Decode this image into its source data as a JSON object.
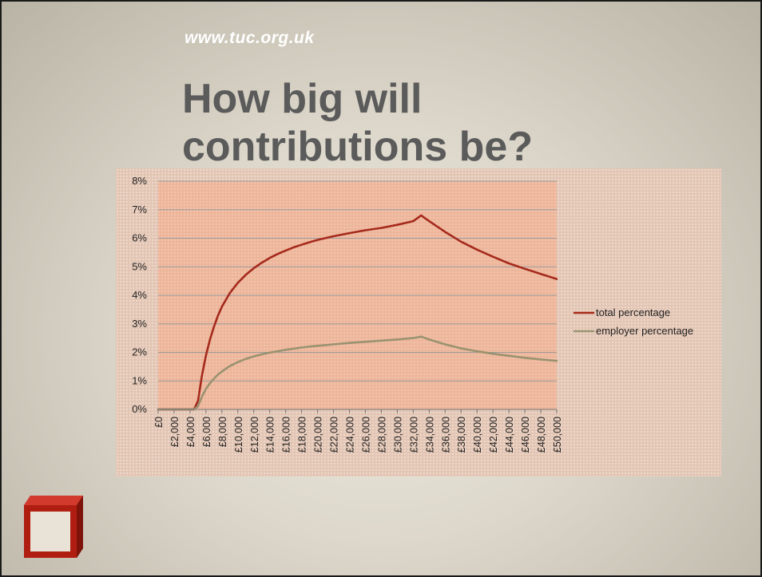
{
  "slide": {
    "url": "www.tuc.org.uk",
    "title_lines": [
      "How big will",
      "contributions be?"
    ]
  },
  "chart_data": {
    "type": "line",
    "x_tick_labels": [
      "£0",
      "£2,000",
      "£4,000",
      "£6,000",
      "£8,000",
      "£10,000",
      "£12,000",
      "£14,000",
      "£16,000",
      "£18,000",
      "£20,000",
      "£22,000",
      "£24,000",
      "£26,000",
      "£28,000",
      "£30,000",
      "£32,000",
      "£34,000",
      "£36,000",
      "£38,000",
      "£40,000",
      "£42,000",
      "£44,000",
      "£46,000",
      "£48,000",
      "£50,000"
    ],
    "y_tick_labels": [
      "0%",
      "1%",
      "2%",
      "3%",
      "4%",
      "5%",
      "6%",
      "7%",
      "8%"
    ],
    "ylim": [
      0,
      8
    ],
    "xlim": [
      0,
      50000
    ],
    "grid": true,
    "legend_position": "right",
    "series": [
      {
        "name": "total percentage",
        "color": "#a52a1c",
        "x": [
          0,
          4500,
          5000,
          5500,
          6000,
          6500,
          7000,
          7500,
          8000,
          9000,
          10000,
          11000,
          12000,
          13000,
          14000,
          15000,
          16000,
          17000,
          18000,
          19000,
          20000,
          22000,
          24000,
          26000,
          28000,
          30000,
          32000,
          33000,
          34000,
          36000,
          38000,
          40000,
          42000,
          44000,
          46000,
          48000,
          50000
        ],
        "values": [
          0,
          0,
          0.3,
          1.2,
          1.9,
          2.45,
          2.9,
          3.28,
          3.6,
          4.08,
          4.44,
          4.72,
          4.95,
          5.14,
          5.31,
          5.45,
          5.57,
          5.68,
          5.77,
          5.86,
          5.94,
          6.07,
          6.18,
          6.28,
          6.36,
          6.47,
          6.6,
          6.8,
          6.6,
          6.22,
          5.88,
          5.6,
          5.35,
          5.12,
          4.93,
          4.75,
          4.57
        ]
      },
      {
        "name": "employer percentage",
        "color": "#9a9270",
        "x": [
          0,
          4500,
          5000,
          5500,
          6000,
          6500,
          7000,
          7500,
          8000,
          9000,
          10000,
          11000,
          12000,
          13000,
          14000,
          15000,
          16000,
          17000,
          18000,
          19000,
          20000,
          22000,
          24000,
          26000,
          28000,
          30000,
          32000,
          33000,
          34000,
          36000,
          38000,
          40000,
          42000,
          44000,
          46000,
          48000,
          50000
        ],
        "values": [
          0,
          0,
          0.11,
          0.45,
          0.72,
          0.92,
          1.08,
          1.22,
          1.33,
          1.52,
          1.66,
          1.77,
          1.86,
          1.93,
          1.99,
          2.04,
          2.09,
          2.13,
          2.17,
          2.2,
          2.23,
          2.28,
          2.33,
          2.37,
          2.41,
          2.45,
          2.5,
          2.55,
          2.45,
          2.28,
          2.14,
          2.04,
          1.95,
          1.88,
          1.81,
          1.75,
          1.7
        ]
      }
    ]
  }
}
